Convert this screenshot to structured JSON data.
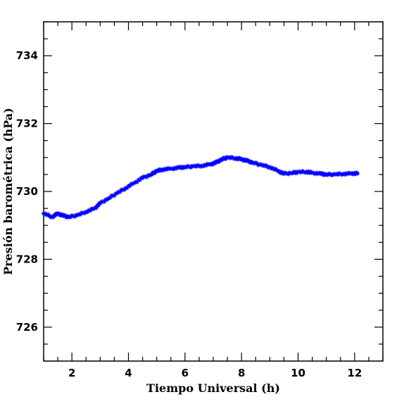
{
  "chart_data": {
    "type": "scatter",
    "title": "",
    "xlabel": "Tiempo Universal (h)",
    "ylabel": "Presión barométrica (hPa)",
    "xlim": [
      1,
      13
    ],
    "ylim": [
      725,
      735
    ],
    "x_ticks": [
      2,
      4,
      6,
      8,
      10,
      12
    ],
    "x_tick_labels": [
      "2",
      "4",
      "6",
      "8",
      "10",
      "12"
    ],
    "y_ticks": [
      726,
      728,
      730,
      732,
      734
    ],
    "y_tick_labels": [
      "726",
      "728",
      "730",
      "732",
      "734"
    ],
    "x_minor_step": 0.5,
    "y_minor_step": 0.5,
    "grid": false,
    "marker": "star",
    "color": "#0000ff",
    "series": [
      {
        "x": [
          1.0,
          1.3,
          1.5,
          1.7,
          1.9,
          2.2,
          2.5,
          2.8,
          3.0,
          3.3,
          3.6,
          3.9,
          4.2,
          4.5,
          4.8,
          5.0,
          5.2,
          5.5,
          5.8,
          6.0,
          6.3,
          6.6,
          6.9,
          7.1,
          7.3,
          7.5,
          7.8,
          8.0,
          8.2,
          8.4,
          8.7,
          9.0,
          9.3,
          9.5,
          9.8,
          10.0,
          10.3,
          10.5,
          10.8,
          11.0,
          11.3,
          11.6,
          11.9,
          12.1
        ],
        "y": [
          729.35,
          729.25,
          729.35,
          729.28,
          729.25,
          729.3,
          729.4,
          729.5,
          729.65,
          729.8,
          729.95,
          730.1,
          730.25,
          730.4,
          730.5,
          730.6,
          730.65,
          730.67,
          730.7,
          730.72,
          730.74,
          730.76,
          730.8,
          730.85,
          730.95,
          731.0,
          730.98,
          730.95,
          730.9,
          730.85,
          730.78,
          730.72,
          730.6,
          730.52,
          730.55,
          730.57,
          730.58,
          730.55,
          730.52,
          730.5,
          730.5,
          730.52,
          730.53,
          730.53
        ]
      }
    ]
  }
}
